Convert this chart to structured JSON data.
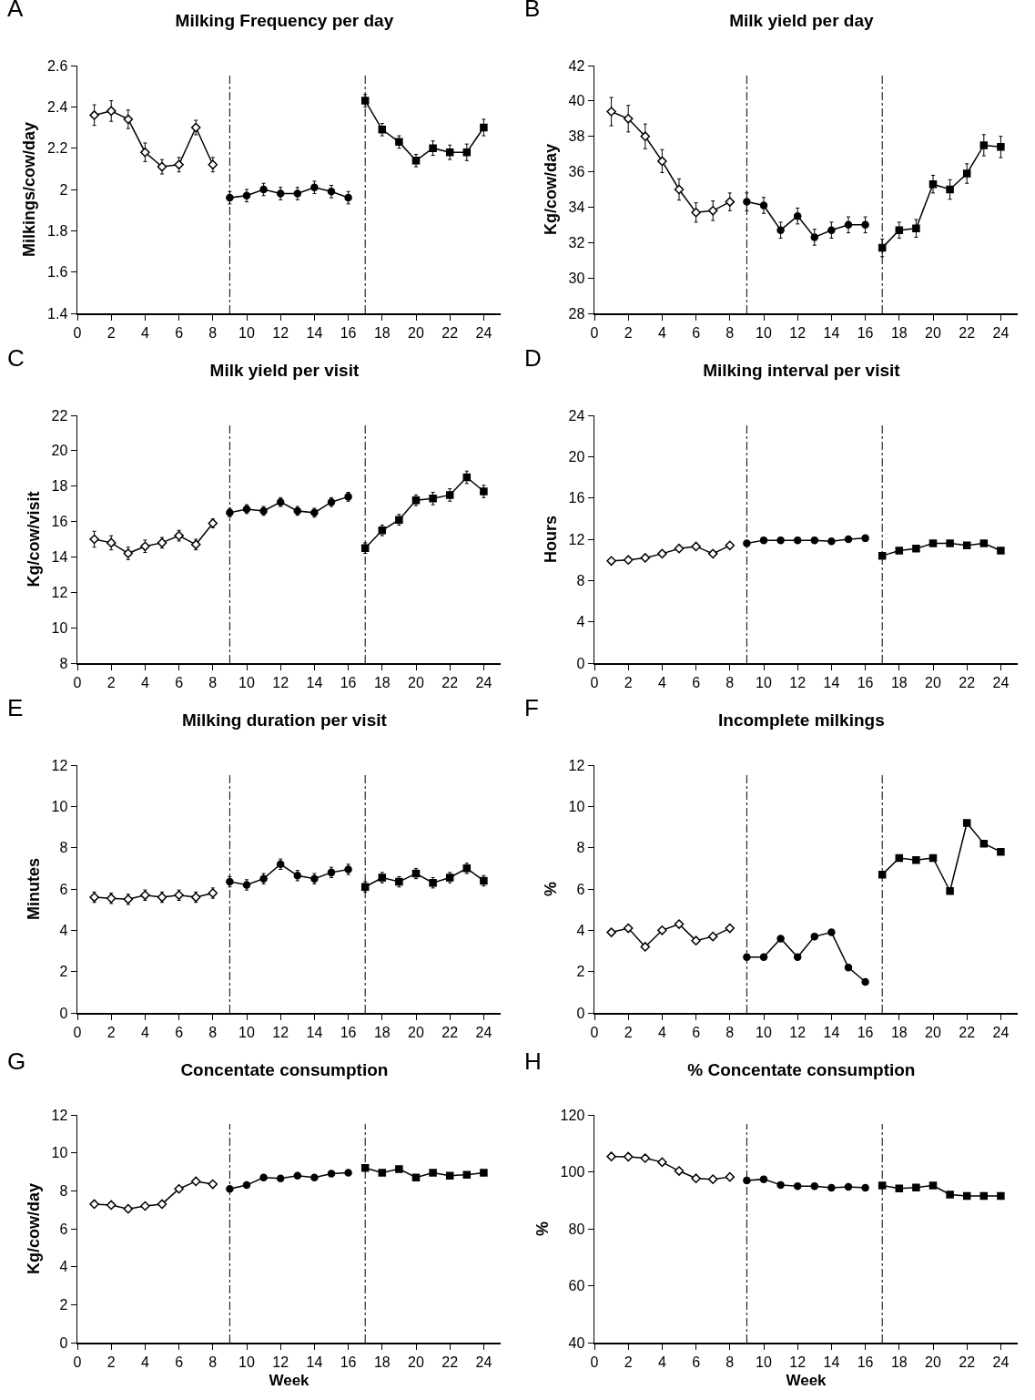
{
  "chart_data": [
    {
      "type": "line",
      "title": "Milking Frequency per day",
      "annotations": [
        "A"
      ],
      "ylabel": "Milkings/cow/day",
      "xlim": [
        0,
        25
      ],
      "xticks": [
        0,
        2,
        4,
        6,
        8,
        10,
        12,
        14,
        16,
        18,
        20,
        22,
        24
      ],
      "ylim": [
        1.4,
        2.6
      ],
      "yticks": [
        1.4,
        1.6,
        1.8,
        2,
        2.2,
        2.4,
        2.6
      ],
      "grid": false,
      "ref_lines": [
        {
          "axis": "x",
          "value": 9
        },
        {
          "axis": "x",
          "value": 17
        }
      ],
      "series": [
        {
          "color": "#000000",
          "marker": "diamond",
          "x": [
            1,
            2,
            3,
            4,
            5,
            6,
            7,
            8
          ],
          "values": [
            2.36,
            2.38,
            2.34,
            2.18,
            2.11,
            2.12,
            2.3,
            2.12
          ],
          "errors": [
            0.05,
            0.05,
            0.045,
            0.045,
            0.035,
            0.035,
            0.035,
            0.035
          ]
        },
        {
          "color": "#000000",
          "marker": "circle",
          "x": [
            9,
            10,
            11,
            12,
            13,
            14,
            15,
            16
          ],
          "values": [
            1.96,
            1.97,
            2.0,
            1.98,
            1.98,
            2.01,
            1.99,
            1.96
          ],
          "errors": [
            0.03,
            0.03,
            0.03,
            0.03,
            0.03,
            0.03,
            0.03,
            0.03
          ]
        },
        {
          "color": "#000000",
          "marker": "square",
          "x": [
            17,
            18,
            19,
            20,
            21,
            22,
            23,
            24
          ],
          "values": [
            2.43,
            2.29,
            2.23,
            2.14,
            2.2,
            2.18,
            2.18,
            2.3
          ],
          "errors": [
            0.03,
            0.03,
            0.03,
            0.03,
            0.035,
            0.035,
            0.04,
            0.04
          ]
        }
      ]
    },
    {
      "type": "line",
      "title": "Milk yield per day",
      "annotations": [
        "B"
      ],
      "ylabel": "Kg/cow/day",
      "xlim": [
        0,
        25
      ],
      "xticks": [
        0,
        2,
        4,
        6,
        8,
        10,
        12,
        14,
        16,
        18,
        20,
        22,
        24
      ],
      "ylim": [
        28,
        42
      ],
      "yticks": [
        28,
        30,
        32,
        34,
        36,
        38,
        40,
        42
      ],
      "grid": false,
      "ref_lines": [
        {
          "axis": "x",
          "value": 9
        },
        {
          "axis": "x",
          "value": 17
        }
      ],
      "series": [
        {
          "color": "#000000",
          "marker": "diamond",
          "x": [
            1,
            2,
            3,
            4,
            5,
            6,
            7,
            8
          ],
          "values": [
            39.4,
            39.0,
            38.0,
            36.6,
            35.0,
            33.7,
            33.8,
            34.3
          ],
          "errors": [
            0.8,
            0.75,
            0.7,
            0.65,
            0.6,
            0.55,
            0.55,
            0.5
          ]
        },
        {
          "color": "#000000",
          "marker": "circle",
          "x": [
            9,
            10,
            11,
            12,
            13,
            14,
            15,
            16
          ],
          "values": [
            34.3,
            34.1,
            32.7,
            33.5,
            32.3,
            32.7,
            33.0,
            33.0
          ],
          "errors": [
            0.5,
            0.45,
            0.45,
            0.45,
            0.45,
            0.45,
            0.45,
            0.45
          ]
        },
        {
          "color": "#000000",
          "marker": "square",
          "x": [
            17,
            18,
            19,
            20,
            21,
            22,
            23,
            24
          ],
          "values": [
            31.7,
            32.7,
            32.8,
            35.3,
            35.0,
            35.9,
            37.5,
            37.4
          ],
          "errors": [
            0.5,
            0.45,
            0.5,
            0.5,
            0.55,
            0.55,
            0.6,
            0.6
          ]
        }
      ]
    },
    {
      "type": "line",
      "title": "Milk yield per visit",
      "annotations": [
        "C"
      ],
      "ylabel": "Kg/cow/visit",
      "xlim": [
        0,
        25
      ],
      "xticks": [
        0,
        2,
        4,
        6,
        8,
        10,
        12,
        14,
        16,
        18,
        20,
        22,
        24
      ],
      "ylim": [
        8,
        22
      ],
      "yticks": [
        8,
        10,
        12,
        14,
        16,
        18,
        20,
        22
      ],
      "grid": false,
      "ref_lines": [
        {
          "axis": "x",
          "value": 9
        },
        {
          "axis": "x",
          "value": 17
        }
      ],
      "series": [
        {
          "color": "#000000",
          "marker": "diamond",
          "x": [
            1,
            2,
            3,
            4,
            5,
            6,
            7,
            8
          ],
          "values": [
            15.0,
            14.8,
            14.2,
            14.6,
            14.8,
            15.2,
            14.7,
            15.9
          ],
          "errors": [
            0.45,
            0.4,
            0.35,
            0.35,
            0.3,
            0.3,
            0.3,
            0.25
          ]
        },
        {
          "color": "#000000",
          "marker": "circle",
          "x": [
            9,
            10,
            11,
            12,
            13,
            14,
            15,
            16
          ],
          "values": [
            16.5,
            16.7,
            16.6,
            17.1,
            16.6,
            16.5,
            17.1,
            17.4
          ],
          "errors": [
            0.25,
            0.25,
            0.25,
            0.25,
            0.25,
            0.25,
            0.25,
            0.25
          ]
        },
        {
          "color": "#000000",
          "marker": "square",
          "x": [
            17,
            18,
            19,
            20,
            21,
            22,
            23,
            24
          ],
          "values": [
            14.5,
            15.5,
            16.1,
            17.2,
            17.3,
            17.5,
            18.5,
            17.7
          ],
          "errors": [
            0.3,
            0.3,
            0.3,
            0.3,
            0.35,
            0.35,
            0.35,
            0.35
          ]
        }
      ]
    },
    {
      "type": "line",
      "title": "Milking interval per visit",
      "annotations": [
        "D"
      ],
      "ylabel": "Hours",
      "xlim": [
        0,
        25
      ],
      "xticks": [
        0,
        2,
        4,
        6,
        8,
        10,
        12,
        14,
        16,
        18,
        20,
        22,
        24
      ],
      "ylim": [
        0,
        24
      ],
      "yticks": [
        0,
        4,
        8,
        12,
        16,
        20,
        24
      ],
      "grid": false,
      "ref_lines": [
        {
          "axis": "x",
          "value": 9
        },
        {
          "axis": "x",
          "value": 17
        }
      ],
      "series": [
        {
          "color": "#000000",
          "marker": "diamond",
          "x": [
            1,
            2,
            3,
            4,
            5,
            6,
            7,
            8
          ],
          "values": [
            9.9,
            10.0,
            10.2,
            10.6,
            11.1,
            11.3,
            10.6,
            11.4
          ]
        },
        {
          "color": "#000000",
          "marker": "circle",
          "x": [
            9,
            10,
            11,
            12,
            13,
            14,
            15,
            16
          ],
          "values": [
            11.6,
            11.9,
            11.9,
            11.9,
            11.9,
            11.8,
            12.0,
            12.1
          ]
        },
        {
          "color": "#000000",
          "marker": "square",
          "x": [
            17,
            18,
            19,
            20,
            21,
            22,
            23,
            24
          ],
          "values": [
            10.4,
            10.9,
            11.1,
            11.6,
            11.6,
            11.4,
            11.6,
            10.9
          ]
        }
      ]
    },
    {
      "type": "line",
      "title": "Milking duration per visit",
      "annotations": [
        "E"
      ],
      "ylabel": "Minutes",
      "xlim": [
        0,
        25
      ],
      "xticks": [
        0,
        2,
        4,
        6,
        8,
        10,
        12,
        14,
        16,
        18,
        20,
        22,
        24
      ],
      "ylim": [
        0,
        12
      ],
      "yticks": [
        0,
        2,
        4,
        6,
        8,
        10,
        12
      ],
      "grid": false,
      "ref_lines": [
        {
          "axis": "x",
          "value": 9
        },
        {
          "axis": "x",
          "value": 17
        }
      ],
      "series": [
        {
          "color": "#000000",
          "marker": "diamond",
          "x": [
            1,
            2,
            3,
            4,
            5,
            6,
            7,
            8
          ],
          "values": [
            5.6,
            5.55,
            5.5,
            5.7,
            5.6,
            5.7,
            5.6,
            5.8
          ],
          "errors": [
            0.25,
            0.25,
            0.25,
            0.25,
            0.25,
            0.25,
            0.25,
            0.25
          ]
        },
        {
          "color": "#000000",
          "marker": "circle",
          "x": [
            9,
            10,
            11,
            12,
            13,
            14,
            15,
            16
          ],
          "values": [
            6.35,
            6.2,
            6.5,
            7.2,
            6.65,
            6.5,
            6.8,
            6.95
          ],
          "errors": [
            0.25,
            0.25,
            0.25,
            0.25,
            0.25,
            0.25,
            0.25,
            0.25
          ]
        },
        {
          "color": "#000000",
          "marker": "square",
          "x": [
            17,
            18,
            19,
            20,
            21,
            22,
            23,
            24
          ],
          "values": [
            6.1,
            6.55,
            6.35,
            6.75,
            6.3,
            6.55,
            7.0,
            6.4
          ],
          "errors": [
            0.25,
            0.25,
            0.25,
            0.25,
            0.25,
            0.25,
            0.25,
            0.25
          ]
        }
      ]
    },
    {
      "type": "line",
      "title": "Incomplete milkings",
      "annotations": [
        "F"
      ],
      "ylabel": "%",
      "xlim": [
        0,
        25
      ],
      "xticks": [
        0,
        2,
        4,
        6,
        8,
        10,
        12,
        14,
        16,
        18,
        20,
        22,
        24
      ],
      "ylim": [
        0,
        12
      ],
      "yticks": [
        0,
        2,
        4,
        6,
        8,
        10,
        12
      ],
      "grid": false,
      "ref_lines": [
        {
          "axis": "x",
          "value": 9
        },
        {
          "axis": "x",
          "value": 17
        }
      ],
      "series": [
        {
          "color": "#000000",
          "marker": "diamond",
          "x": [
            1,
            2,
            3,
            4,
            5,
            6,
            7,
            8
          ],
          "values": [
            3.9,
            4.1,
            3.2,
            4.0,
            4.3,
            3.5,
            3.7,
            4.1
          ]
        },
        {
          "color": "#000000",
          "marker": "circle",
          "x": [
            9,
            10,
            11,
            12,
            13,
            14,
            15,
            16
          ],
          "values": [
            2.7,
            2.7,
            3.6,
            2.7,
            3.7,
            3.9,
            2.2,
            1.5
          ]
        },
        {
          "color": "#000000",
          "marker": "square",
          "x": [
            17,
            18,
            19,
            20,
            21,
            22,
            23,
            24
          ],
          "values": [
            6.7,
            7.5,
            7.4,
            7.5,
            5.9,
            9.2,
            8.2,
            7.8
          ]
        }
      ]
    },
    {
      "type": "line",
      "title": "Concentate consumption",
      "annotations": [
        "G"
      ],
      "xlabel": "Week",
      "ylabel": "Kg/cow/day",
      "xlim": [
        0,
        25
      ],
      "xticks": [
        0,
        2,
        4,
        6,
        8,
        10,
        12,
        14,
        16,
        18,
        20,
        22,
        24
      ],
      "ylim": [
        0,
        12
      ],
      "yticks": [
        0,
        2,
        4,
        6,
        8,
        10,
        12
      ],
      "grid": false,
      "ref_lines": [
        {
          "axis": "x",
          "value": 9
        },
        {
          "axis": "x",
          "value": 17
        }
      ],
      "series": [
        {
          "color": "#000000",
          "marker": "diamond",
          "x": [
            1,
            2,
            3,
            4,
            5,
            6,
            7,
            8
          ],
          "values": [
            7.3,
            7.25,
            7.05,
            7.2,
            7.3,
            8.1,
            8.5,
            8.35
          ]
        },
        {
          "color": "#000000",
          "marker": "circle",
          "x": [
            9,
            10,
            11,
            12,
            13,
            14,
            15,
            16
          ],
          "values": [
            8.1,
            8.3,
            8.7,
            8.65,
            8.8,
            8.7,
            8.9,
            8.95
          ]
        },
        {
          "color": "#000000",
          "marker": "square",
          "x": [
            17,
            18,
            19,
            20,
            21,
            22,
            23,
            24
          ],
          "values": [
            9.2,
            8.95,
            9.15,
            8.7,
            8.95,
            8.8,
            8.85,
            8.95
          ]
        }
      ]
    },
    {
      "type": "line",
      "title": "% Concentate consumption",
      "annotations": [
        "H"
      ],
      "xlabel": "Week",
      "ylabel": "%",
      "xlim": [
        0,
        25
      ],
      "xticks": [
        0,
        2,
        4,
        6,
        8,
        10,
        12,
        14,
        16,
        18,
        20,
        22,
        24
      ],
      "ylim": [
        40,
        120
      ],
      "yticks": [
        40,
        60,
        80,
        100,
        120
      ],
      "grid": false,
      "ref_lines": [
        {
          "axis": "x",
          "value": 9
        },
        {
          "axis": "x",
          "value": 17
        }
      ],
      "series": [
        {
          "color": "#000000",
          "marker": "diamond",
          "x": [
            1,
            2,
            3,
            4,
            5,
            6,
            7,
            8
          ],
          "values": [
            105.4,
            105.3,
            104.8,
            103.4,
            100.3,
            97.7,
            97.4,
            98.2
          ]
        },
        {
          "color": "#000000",
          "marker": "circle",
          "x": [
            9,
            10,
            11,
            12,
            13,
            14,
            15,
            16
          ],
          "values": [
            97.0,
            97.4,
            95.4,
            95.0,
            95.0,
            94.4,
            94.7,
            94.4
          ]
        },
        {
          "color": "#000000",
          "marker": "square",
          "x": [
            17,
            18,
            19,
            20,
            21,
            22,
            23,
            24
          ],
          "values": [
            95.2,
            94.2,
            94.5,
            95.2,
            92.0,
            91.5,
            91.5,
            91.5
          ]
        }
      ]
    }
  ]
}
